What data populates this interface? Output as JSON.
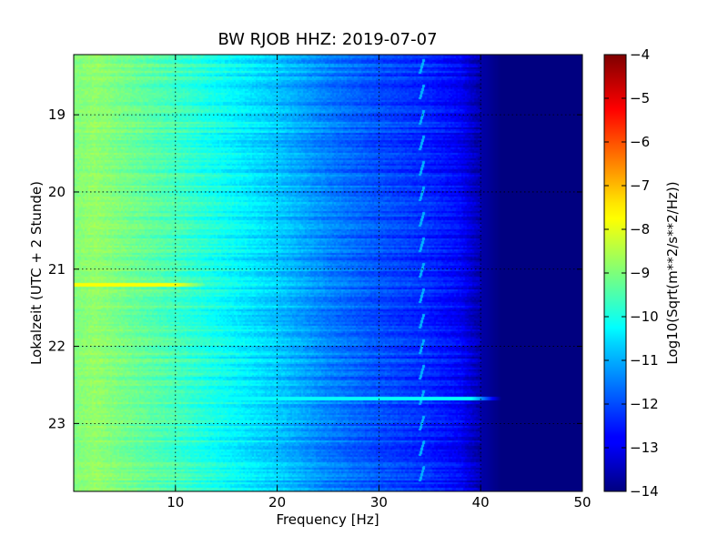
{
  "chart_data": {
    "type": "heatmap",
    "title": "BW RJOB HHZ: 2019-07-07",
    "xlabel": "Frequency [Hz]",
    "ylabel": "Lokalzeit (UTC + 2 Stunde)",
    "xlim": [
      0,
      50
    ],
    "ylim": [
      18.22,
      23.88
    ],
    "y_inverted": true,
    "x_ticks": [
      10,
      20,
      30,
      40,
      50
    ],
    "y_ticks": [
      19,
      20,
      21,
      22,
      23
    ],
    "grid": true,
    "colormap": "jet",
    "colorbar": {
      "label": "Log10(Sqrt(m**2/s**2/Hz))",
      "range": [
        -14,
        -4
      ],
      "ticks": [
        -4,
        -5,
        -6,
        -7,
        -8,
        -9,
        -10,
        -11,
        -12,
        -13,
        -14
      ]
    },
    "profile": {
      "frequency_hz": [
        0,
        2,
        5,
        10,
        15,
        20,
        25,
        30,
        35,
        38,
        40,
        42,
        50
      ],
      "value": [
        -9.0,
        -8.8,
        -9.1,
        -9.6,
        -10.2,
        -10.8,
        -11.5,
        -12.0,
        -12.4,
        -12.8,
        -13.6,
        -14.0,
        -14.0
      ]
    },
    "features": [
      {
        "type": "horizontal_band",
        "time_hour": 21.2,
        "freq_range_hz": [
          0,
          13
        ],
        "value": -7.8
      },
      {
        "type": "horizontal_band",
        "time_hour": 22.67,
        "freq_range_hz": [
          0,
          42
        ],
        "value": -10.2
      },
      {
        "type": "periodic_line",
        "freq_hz": 34.5,
        "period_hour": 0.33,
        "value": -11.0
      }
    ]
  }
}
